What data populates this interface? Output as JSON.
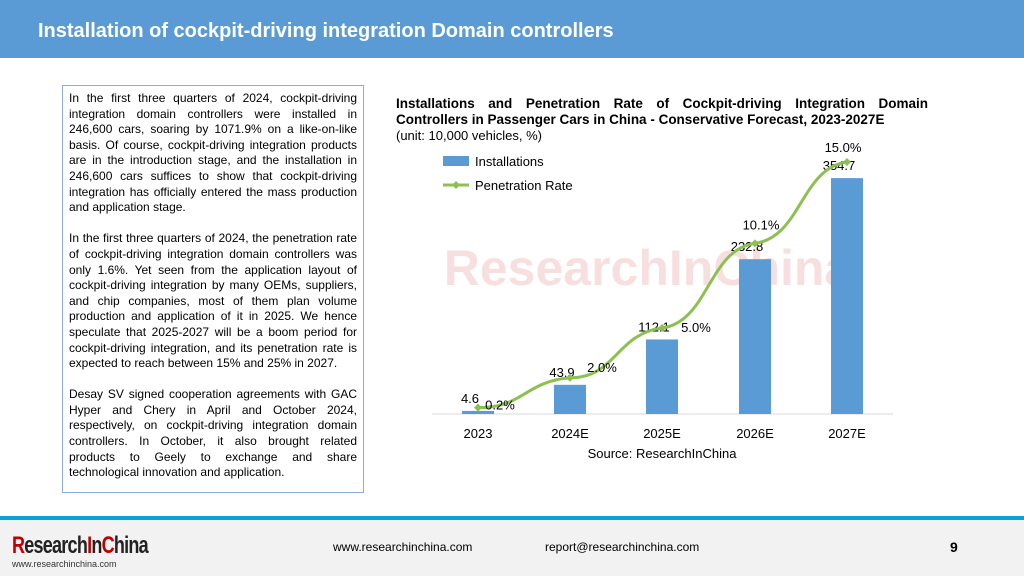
{
  "header": {
    "title": "Installation of cockpit-driving integration Domain controllers"
  },
  "body": {
    "paragraphs": [
      "In the first three quarters of 2024, cockpit-driving integration domain controllers were installed in 246,600 cars, soaring by 1071.9% on a like-on-like basis. Of course, cockpit-driving integration products are in the introduction stage, and the installation in 246,600 cars suffices to show that cockpit-driving integration has officially entered the mass production and application stage.",
      "In the first three quarters of 2024, the penetration rate of cockpit-driving integration domain controllers was only 1.6%. Yet seen from the application layout of cockpit-driving integration by many OEMs, suppliers, and chip companies, most of them plan volume production and application of it in 2025. We hence speculate that 2025-2027 will be a boom period for cockpit-driving integration, and its penetration rate is expected to reach between 15% and 25% in 2027.",
      "Desay SV signed cooperation agreements with GAC Hyper and Chery in April and October 2024, respectively, on cockpit-driving integration domain controllers. In October, it also brought related products to Geely to exchange and share technological innovation and application."
    ]
  },
  "chart_data": {
    "type": "bar+line",
    "title_line1": "Installations and Penetration Rate of Cockpit-driving Integration Domain",
    "title_line2": "Controllers in Passenger Cars in China - Conservative Forecast, 2023-2027E",
    "unit": "(unit: 10,000 vehicles, %)",
    "categories": [
      "2023",
      "2024E",
      "2025E",
      "2026E",
      "2027E"
    ],
    "series": [
      {
        "name": "Installations",
        "type": "bar",
        "values": [
          4.6,
          43.9,
          112.1,
          232.8,
          354.7
        ],
        "labels": [
          "4.6",
          "43.9",
          "112.1",
          "232.8",
          "354.7"
        ],
        "color": "#5b9bd5"
      },
      {
        "name": "Penetration Rate",
        "type": "line",
        "values": [
          0.2,
          2.0,
          5.0,
          10.1,
          15.0
        ],
        "labels": [
          "0.2%",
          "2.0%",
          "5.0%",
          "10.1%",
          "15.0%"
        ],
        "color": "#8cc152"
      }
    ],
    "legend": "top-left",
    "source": "Source: ResearchInChina",
    "watermark": "ResearchInChina www.researchinchina.com"
  },
  "footer": {
    "logo": "ResearchInChina",
    "logo_url": "www.researchinchina.com",
    "website": "www.researchinchina.com",
    "email": "report@researchinchina.com",
    "page": "9"
  }
}
